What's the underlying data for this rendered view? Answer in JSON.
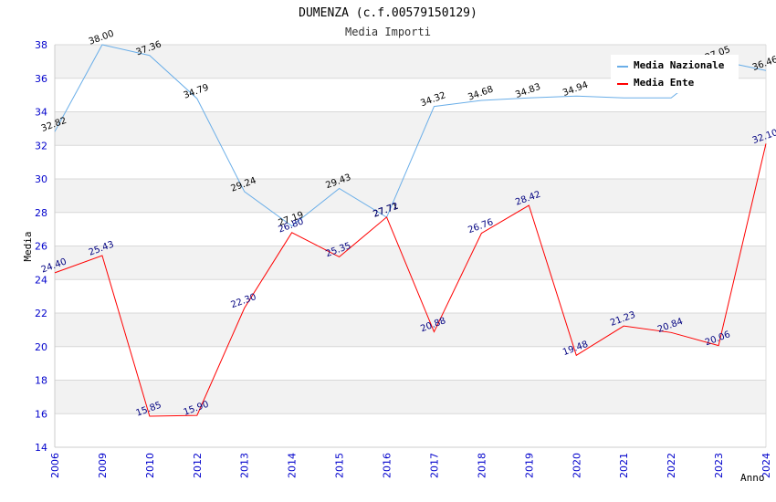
{
  "chart_data": {
    "type": "line",
    "title": "DUMENZA (c.f.00579150129)",
    "subtitle": "Media Importi",
    "xlabel": "Anno",
    "ylabel": "Media",
    "ylim": [
      14,
      38
    ],
    "yticks": [
      14,
      16,
      18,
      20,
      22,
      24,
      26,
      28,
      30,
      32,
      34,
      36,
      38
    ],
    "categories": [
      "2006",
      "2009",
      "2010",
      "2012",
      "2013",
      "2014",
      "2015",
      "2016",
      "2017",
      "2018",
      "2019",
      "2020",
      "2021",
      "2022",
      "2023",
      "2024"
    ],
    "series": [
      {
        "name": "Media Nazionale",
        "color": "#6aaee8",
        "values": [
          32.82,
          38.0,
          37.36,
          34.79,
          29.24,
          27.19,
          29.43,
          27.71,
          34.32,
          34.68,
          34.83,
          34.94,
          34.83,
          34.83,
          37.05,
          36.46
        ],
        "labels": [
          "32.82",
          "38.00",
          "37.36",
          "34.79",
          "29.24",
          "27.19",
          "29.43",
          "27.71",
          "34.32",
          "34.68",
          "34.83",
          "34.94",
          "",
          "",
          "37.05",
          "36.46"
        ]
      },
      {
        "name": "Media Ente",
        "color": "#ff0000",
        "values": [
          24.4,
          25.43,
          15.85,
          15.9,
          22.3,
          26.8,
          25.35,
          27.72,
          20.88,
          26.76,
          28.42,
          19.48,
          21.23,
          20.84,
          20.06,
          32.1
        ],
        "labels": [
          "24.40",
          "25.43",
          "15.85",
          "15.90",
          "22.30",
          "26.80",
          "25.35",
          "27.72",
          "20.88",
          "26.76",
          "28.42",
          "19.48",
          "21.23",
          "20.84",
          "20.06",
          "32.10"
        ]
      }
    ],
    "grid": true,
    "legend_position": "top-right"
  }
}
